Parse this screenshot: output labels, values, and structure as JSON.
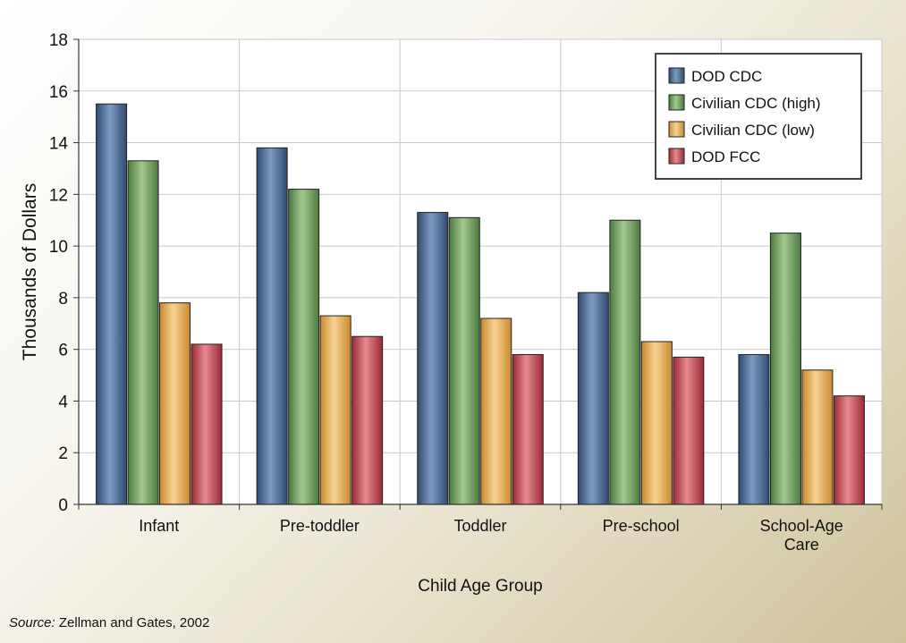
{
  "chart_data": {
    "type": "bar",
    "title": "",
    "xlabel": "Child Age Group",
    "ylabel": "Thousands of Dollars",
    "ylim": [
      0,
      18
    ],
    "yticks": [
      0,
      2,
      4,
      6,
      8,
      10,
      12,
      14,
      16,
      18
    ],
    "grid": true,
    "legend_position": "top-right",
    "categories": [
      "Infant",
      "Pre-toddler",
      "Toddler",
      "Pre-school",
      "School-Age Care"
    ],
    "series": [
      {
        "name": "DOD CDC",
        "color": "#4a6c96",
        "values": [
          15.5,
          13.8,
          11.3,
          8.2,
          5.8
        ]
      },
      {
        "name": "Civilian CDC (high)",
        "color": "#6f9e5f",
        "values": [
          13.3,
          12.2,
          11.1,
          11.0,
          10.5
        ]
      },
      {
        "name": "Civilian CDC (low)",
        "color": "#e8ac4f",
        "values": [
          7.8,
          7.3,
          7.2,
          6.3,
          5.2
        ]
      },
      {
        "name": "DOD FCC",
        "color": "#c0424c",
        "values": [
          6.2,
          6.5,
          5.8,
          5.7,
          4.2
        ]
      }
    ]
  },
  "source": {
    "label": "Source:",
    "text": " Zellman and Gates, 2002"
  }
}
